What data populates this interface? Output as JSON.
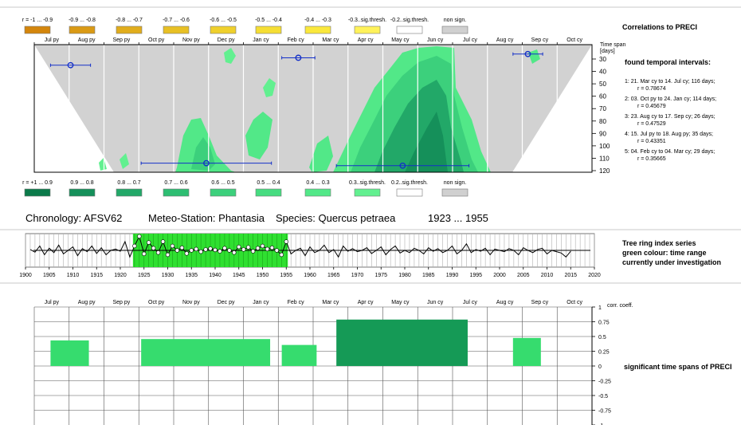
{
  "colors": {
    "neg_scale": [
      "#d4860c",
      "#da9a14",
      "#e1ad1c",
      "#e8c024",
      "#efd02c",
      "#f5de34",
      "#fae83c",
      "#fff25a",
      "#ffffff",
      "#d0d0d0"
    ],
    "pos_scale": [
      "#0b7a4a",
      "#15905a",
      "#22a868",
      "#2dbe72",
      "#3cd07c",
      "#46dc80",
      "#52e888",
      "#62f090",
      "#ffffff",
      "#d0d0d0"
    ],
    "bar_dark": "#159a56",
    "bar_light": "#36dc6e",
    "interval_marker": "#1430c8"
  },
  "top_legend": {
    "labels": [
      "r = -1 ... -0.9",
      "-0.9 ... -0.8",
      "-0.8 ... -0.7",
      "-0.7 ... -0.6",
      "-0.6 ... -0.5",
      "-0.5 ... -0.4",
      "-0.4 ... -0.3",
      "-0.3..sig.thresh.",
      "-0.2..sig.thresh.",
      "non sign."
    ]
  },
  "bottom_legend": {
    "labels": [
      "r = +1 ... 0.9",
      "0.9 ... 0.8",
      "0.8 ... 0.7",
      "0.7 ... 0.6",
      "0.6 ... 0.5",
      "0.5 ... 0.4",
      "0.4 ... 0.3",
      "0.3..sig.thresh.",
      "0.2..sig.thresh.",
      "non sign."
    ]
  },
  "heatmap": {
    "title": "Correlations to PRECI",
    "months": [
      "Jul py",
      "Aug py",
      "Sep py",
      "Oct py",
      "Nov py",
      "Dec py",
      "Jan cy",
      "Feb cy",
      "Mar cy",
      "Apr cy",
      "May cy",
      "Jun cy",
      "Jul cy",
      "Aug cy",
      "Sep cy",
      "Oct cy"
    ],
    "yaxis_title": [
      "Time span",
      "[days]"
    ],
    "yticks": [
      30,
      40,
      50,
      60,
      70,
      80,
      90,
      100,
      110,
      120
    ],
    "intervals_title": "found temporal intervals:",
    "intervals": [
      {
        "line1": "1:  21. Mar cy to 14. Jul cy; 116 days;",
        "line2": "r = 0.78674"
      },
      {
        "line1": "2:  03. Oct py to 24. Jan cy; 114 days;",
        "line2": "r = 0.45679"
      },
      {
        "line1": "3:  23. Aug cy to 17. Sep cy; 26 days;",
        "line2": "r = 0.47529"
      },
      {
        "line1": "4:  15. Jul py to 18. Aug py; 35 days;",
        "line2": "r = 0.43351"
      },
      {
        "line1": "5:  04. Feb cy to 04. Mar cy; 29 days;",
        "line2": "r = 0.35665"
      }
    ]
  },
  "info": {
    "chronology": "Chronology: AFSV62",
    "station": "Meteo-Station: Phantasia",
    "species": "Species: Quercus petraea",
    "period": "1923 ... 1955"
  },
  "series_panel": {
    "note": [
      "Tree ring index series",
      "green colour: time range",
      "currently under investigation"
    ],
    "xticks": [
      1900,
      1905,
      1910,
      1915,
      1920,
      1925,
      1930,
      1935,
      1940,
      1945,
      1950,
      1955,
      1960,
      1965,
      1970,
      1975,
      1980,
      1985,
      1990,
      1995,
      2000,
      2005,
      2010,
      2015,
      2020
    ],
    "highlight_start": 1923,
    "highlight_end": 1955
  },
  "chart_data": [
    {
      "type": "heatmap",
      "title": "Correlations to PRECI",
      "x_categories": [
        "Jul py",
        "Aug py",
        "Sep py",
        "Oct py",
        "Nov py",
        "Dec py",
        "Jan cy",
        "Feb cy",
        "Mar cy",
        "Apr cy",
        "May cy",
        "Jun cy",
        "Jul cy",
        "Aug cy",
        "Sep cy",
        "Oct cy"
      ],
      "yticks": [
        30,
        40,
        50,
        60,
        70,
        80,
        90,
        100,
        110,
        120
      ],
      "intervals": [
        {
          "start": "21. Mar cy",
          "end": "14. Jul cy",
          "days": 116,
          "r": 0.78674
        },
        {
          "start": "03. Oct py",
          "end": "24. Jan cy",
          "days": 114,
          "r": 0.45679
        },
        {
          "start": "23. Aug cy",
          "end": "17. Sep cy",
          "days": 26,
          "r": 0.47529
        },
        {
          "start": "15. Jul py",
          "end": "18. Aug py",
          "days": 35,
          "r": 0.43351
        },
        {
          "start": "04. Feb cy",
          "end": "04. Mar cy",
          "days": 29,
          "r": 0.35665
        }
      ]
    },
    {
      "type": "line",
      "xlim": [
        1900,
        2020
      ],
      "highlight_range": [
        1923,
        1955
      ],
      "x": [
        1901,
        1902,
        1903,
        1904,
        1905,
        1906,
        1907,
        1908,
        1909,
        1910,
        1911,
        1912,
        1913,
        1914,
        1915,
        1916,
        1917,
        1918,
        1919,
        1920,
        1921,
        1922,
        1923,
        1924,
        1925,
        1926,
        1927,
        1928,
        1929,
        1930,
        1931,
        1932,
        1933,
        1934,
        1935,
        1936,
        1937,
        1938,
        1939,
        1940,
        1941,
        1942,
        1943,
        1944,
        1945,
        1946,
        1947,
        1948,
        1949,
        1950,
        1951,
        1952,
        1953,
        1954,
        1955,
        1956,
        1957,
        1958,
        1959,
        1960,
        1961,
        1962,
        1963,
        1964,
        1965,
        1966,
        1967,
        1968,
        1969,
        1970,
        1971,
        1972,
        1973,
        1974,
        1975,
        1976,
        1977,
        1978,
        1979,
        1980,
        1981,
        1982,
        1983,
        1984,
        1985,
        1986,
        1987,
        1988,
        1989,
        1990,
        1991,
        1992,
        1993,
        1994,
        1995,
        1996,
        1997,
        1998,
        1999,
        2000,
        2001,
        2002,
        2003,
        2004,
        2005,
        2006,
        2007,
        2008,
        2009,
        2010,
        2011,
        2012,
        2013,
        2014,
        2015
      ],
      "values": [
        1.02,
        0.96,
        1.1,
        0.9,
        1.05,
        0.95,
        1.12,
        0.92,
        1.0,
        1.08,
        0.88,
        1.04,
        0.97,
        1.1,
        0.93,
        1.06,
        0.9,
        1.0,
        1.03,
        0.98,
        1.2,
        0.85,
        1.1,
        1.32,
        0.92,
        1.18,
        1.05,
        0.95,
        1.2,
        0.9,
        1.1,
        1.0,
        1.06,
        0.93,
        1.0,
        1.03,
        0.97,
        1.02,
        1.04,
        1.01,
        0.98,
        1.05,
        1.0,
        0.95,
        1.08,
        1.02,
        1.07,
        0.98,
        1.05,
        1.1,
        1.03,
        1.06,
        1.0,
        0.9,
        1.2,
        0.92,
        1.0,
        1.05,
        0.88,
        1.08,
        0.95,
        1.0,
        1.12,
        0.95,
        1.02,
        0.85,
        1.1,
        0.98,
        1.04,
        0.97,
        1.0,
        1.06,
        0.93,
        1.0,
        1.08,
        0.9,
        1.02,
        1.1,
        0.94,
        1.0,
        0.95,
        1.05,
        1.0,
        0.92,
        1.06,
        0.98,
        1.04,
        0.95,
        1.0,
        1.1,
        0.92,
        1.0,
        1.15,
        0.95,
        1.02,
        0.98,
        1.05,
        0.9,
        1.03,
        1.0,
        0.97,
        1.04,
        1.0,
        0.9,
        1.06,
        1.0,
        0.95,
        1.02,
        1.05,
        0.92,
        1.0,
        0.97,
        0.94,
        0.85,
        0.98
      ]
    },
    {
      "type": "bar",
      "title": "significant time spans of PRECI",
      "ylabel": "corr. coeff.",
      "ylim": [
        -1,
        1
      ],
      "yticks": [
        1,
        0.75,
        0.5,
        0.25,
        0,
        -0.25,
        -0.5,
        -0.75,
        -1
      ],
      "x_categories": [
        "Jul py",
        "Aug py",
        "Sep py",
        "Oct py",
        "Nov py",
        "Dec py",
        "Jan cy",
        "Feb cy",
        "Mar cy",
        "Apr cy",
        "May cy",
        "Jun cy",
        "Jul cy",
        "Aug cy",
        "Sep cy",
        "Oct cy"
      ],
      "bars": [
        {
          "start": "15. Jul py",
          "end": "18. Aug py",
          "value": 0.43351
        },
        {
          "start": "03. Oct py",
          "end": "24. Jan cy",
          "value": 0.45679
        },
        {
          "start": "04. Feb cy",
          "end": "04. Mar cy",
          "value": 0.35665
        },
        {
          "start": "21. Mar cy",
          "end": "14. Jul cy",
          "value": 0.78674
        },
        {
          "start": "23. Aug cy",
          "end": "17. Sep cy",
          "value": 0.47529
        }
      ]
    }
  ]
}
